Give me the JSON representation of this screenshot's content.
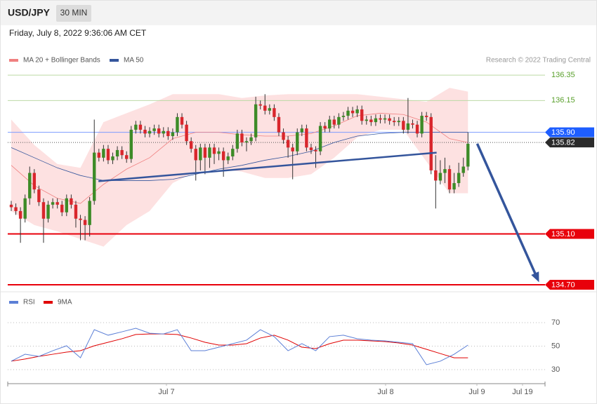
{
  "header": {
    "symbol": "USD/JPY",
    "interval": "30 MIN",
    "datetime": "Friday, July 8, 2022 9:36:06 AM CET",
    "credit": "Research © 2022 Trading Central"
  },
  "chart_data": [
    {
      "type": "candlestick",
      "legend": [
        {
          "name": "MA 20 + Bollinger Bands",
          "color": "#f08080"
        },
        {
          "name": "MA 50",
          "color": "#34559c"
        }
      ],
      "xlim": [
        -0.76,
        115.7
      ],
      "ylim": [
        134.65,
        136.61
      ],
      "up_color": "#3d8b27",
      "down_color": "#d9262c",
      "open": [
        135.33,
        135.31,
        135.28,
        135.22,
        135.38,
        135.58,
        135.45,
        135.35,
        135.22,
        135.33,
        135.35,
        135.33,
        135.27,
        135.38,
        135.33,
        135.22,
        135.21,
        135.17,
        135.36,
        135.74,
        135.7,
        135.77,
        135.68,
        135.71,
        135.76,
        135.72,
        135.69,
        135.92,
        135.96,
        135.92,
        135.89,
        135.91,
        135.93,
        135.89,
        135.91,
        135.87,
        135.9,
        136.02,
        135.96,
        135.83,
        135.77,
        135.68,
        135.78,
        135.7,
        135.78,
        135.73,
        135.75,
        135.68,
        135.71,
        135.77,
        135.89,
        135.82,
        135.83,
        135.86,
        136.12,
        136.11,
        136.07,
        136.09,
        136.02,
        135.9,
        135.84,
        135.78,
        135.75,
        135.9,
        135.93,
        135.78,
        135.76,
        135.75,
        135.95,
        135.93,
        136.0,
        135.96,
        136.02,
        136.03,
        136.07,
        136.05,
        136.08,
        135.99,
        136.0,
        135.98,
        136.01,
        136.0,
        136.01,
        135.99,
        135.98,
        135.99,
        135.92,
        135.97,
        135.96,
        135.89,
        136.03,
        136.02,
        135.6,
        135.52,
        135.58,
        135.61,
        135.45,
        135.5,
        135.58,
        135.63
      ],
      "high": [
        135.36,
        135.34,
        135.31,
        135.41,
        135.63,
        135.61,
        135.48,
        135.38,
        135.36,
        135.38,
        135.38,
        135.36,
        135.41,
        135.41,
        135.36,
        135.25,
        135.24,
        135.39,
        136.0,
        135.77,
        135.8,
        135.8,
        135.74,
        135.79,
        135.79,
        135.75,
        135.95,
        135.99,
        135.99,
        135.95,
        135.94,
        135.96,
        135.96,
        135.94,
        135.94,
        135.93,
        136.05,
        136.05,
        135.99,
        135.86,
        135.8,
        135.81,
        135.81,
        135.81,
        135.81,
        135.78,
        135.78,
        135.74,
        135.8,
        135.92,
        135.92,
        135.86,
        135.89,
        136.18,
        136.15,
        136.2,
        136.12,
        136.12,
        136.05,
        135.93,
        135.87,
        135.81,
        135.93,
        135.96,
        135.96,
        135.81,
        135.79,
        135.98,
        135.98,
        136.03,
        136.03,
        136.05,
        136.06,
        136.1,
        136.1,
        136.11,
        136.11,
        136.03,
        136.03,
        136.04,
        136.04,
        136.04,
        136.04,
        136.02,
        136.02,
        136.02,
        136.17,
        136.0,
        135.99,
        136.06,
        136.06,
        136.05,
        135.72,
        135.68,
        135.7,
        135.64,
        135.58,
        135.66,
        135.7,
        135.9
      ],
      "low": [
        135.28,
        135.25,
        135.03,
        135.19,
        135.33,
        135.42,
        135.32,
        135.03,
        135.19,
        135.3,
        135.3,
        135.24,
        135.24,
        135.3,
        135.15,
        135.05,
        135.05,
        135.08,
        135.33,
        135.67,
        135.67,
        135.65,
        135.65,
        135.68,
        135.69,
        135.66,
        135.66,
        135.89,
        135.89,
        135.86,
        135.86,
        135.88,
        135.86,
        135.86,
        135.84,
        135.84,
        135.87,
        135.93,
        135.8,
        135.74,
        135.52,
        135.6,
        135.57,
        135.62,
        135.65,
        135.68,
        135.55,
        135.65,
        135.68,
        135.74,
        135.79,
        135.75,
        135.8,
        135.83,
        136.08,
        136.04,
        136.04,
        135.99,
        135.87,
        135.81,
        135.7,
        135.53,
        135.72,
        135.87,
        135.75,
        135.73,
        135.62,
        135.72,
        135.9,
        135.9,
        135.93,
        135.93,
        135.99,
        136.0,
        136.02,
        136.02,
        135.96,
        135.96,
        135.95,
        135.95,
        135.97,
        135.97,
        135.96,
        135.95,
        135.95,
        135.89,
        135.89,
        135.93,
        135.86,
        135.86,
        135.99,
        135.57,
        135.3,
        135.49,
        135.5,
        135.42,
        135.42,
        135.47,
        135.55,
        135.6
      ],
      "close": [
        135.31,
        135.28,
        135.22,
        135.38,
        135.58,
        135.45,
        135.35,
        135.22,
        135.33,
        135.35,
        135.33,
        135.27,
        135.38,
        135.33,
        135.22,
        135.21,
        135.17,
        135.36,
        135.74,
        135.7,
        135.77,
        135.68,
        135.71,
        135.76,
        135.72,
        135.69,
        135.92,
        135.96,
        135.92,
        135.89,
        135.91,
        135.93,
        135.89,
        135.91,
        135.87,
        135.9,
        136.02,
        135.96,
        135.83,
        135.77,
        135.68,
        135.78,
        135.7,
        135.78,
        135.73,
        135.75,
        135.68,
        135.71,
        135.77,
        135.89,
        135.82,
        135.83,
        135.86,
        136.12,
        136.11,
        136.07,
        136.09,
        136.02,
        135.9,
        135.84,
        135.78,
        135.75,
        135.9,
        135.93,
        135.78,
        135.76,
        135.75,
        135.95,
        135.93,
        136.0,
        135.96,
        136.02,
        136.03,
        136.07,
        136.05,
        136.08,
        135.99,
        136.0,
        135.98,
        136.01,
        136.0,
        136.01,
        135.99,
        135.98,
        135.99,
        135.92,
        135.97,
        135.96,
        135.89,
        136.03,
        136.02,
        135.6,
        135.52,
        135.58,
        135.61,
        135.45,
        135.5,
        135.58,
        135.63,
        135.81
      ],
      "indicators": {
        "x": [
          0,
          5,
          10,
          15,
          20,
          25,
          30,
          35,
          40,
          45,
          50,
          55,
          60,
          65,
          70,
          75,
          80,
          85,
          90,
          95,
          99
        ],
        "band_color": "#fde1e1",
        "upper": [
          136.0,
          135.8,
          135.65,
          135.62,
          135.98,
          136.05,
          136.12,
          136.2,
          136.2,
          136.2,
          136.17,
          136.19,
          136.2,
          136.2,
          136.2,
          136.2,
          136.18,
          136.16,
          136.14,
          136.25,
          136.22
        ],
        "lower": [
          135.28,
          135.17,
          135.12,
          135.06,
          135.0,
          135.17,
          135.28,
          135.5,
          135.59,
          135.61,
          135.59,
          135.54,
          135.54,
          135.57,
          135.7,
          135.86,
          135.92,
          135.92,
          135.67,
          135.42,
          135.42
        ],
        "ma20": [
          135.64,
          135.48,
          135.38,
          135.34,
          135.49,
          135.61,
          135.7,
          135.85,
          135.9,
          135.9,
          135.88,
          135.87,
          135.87,
          135.89,
          135.95,
          136.03,
          136.05,
          136.04,
          135.98,
          135.85,
          135.82
        ],
        "ma50": [
          135.78,
          135.7,
          135.62,
          135.56,
          135.52,
          135.52,
          135.52,
          135.53,
          135.57,
          135.61,
          135.64,
          135.68,
          135.71,
          135.75,
          135.82,
          135.87,
          135.89,
          135.9,
          135.9,
          135.9,
          135.9
        ]
      },
      "trendline": {
        "x": [
          18.9,
          92.2
        ],
        "y": [
          135.515,
          135.74
        ],
        "color": "#34559c"
      },
      "arrow": {
        "x": [
          101,
          114.4
        ],
        "y": [
          135.81,
          134.72
        ],
        "color": "#34559c"
      },
      "levels": [
        {
          "value": 136.35,
          "color": "#5aa02c",
          "line_color": "#bcd9a4",
          "box": false
        },
        {
          "value": 136.15,
          "color": "#5aa02c",
          "line_color": "#bcd9a4",
          "box": false
        },
        {
          "value": 135.9,
          "label": "135.90",
          "color": "#1e5eff",
          "line_color": "#7d9bff",
          "box": true
        },
        {
          "value": 135.82,
          "color": "#2b2b2b",
          "line_color": "#555555",
          "box": true,
          "dotted": true
        },
        {
          "value": 135.1,
          "label": "135.10",
          "color": "#e8000b",
          "line_color": "#e8000b",
          "box": true
        },
        {
          "value": 134.7,
          "label": "134.70",
          "color": "#e8000b",
          "line_color": "#e8000b",
          "box": true
        }
      ]
    },
    {
      "type": "line",
      "x": [
        0,
        3,
        6,
        9,
        12,
        15,
        18,
        21,
        24,
        27,
        30,
        33,
        36,
        39,
        42,
        45,
        48,
        51,
        54,
        57,
        60,
        63,
        66,
        69,
        72,
        75,
        78,
        81,
        84,
        87,
        90,
        93,
        96,
        99
      ],
      "series": [
        {
          "name": "RSI",
          "color": "#5b7fd6",
          "values": [
            37.2,
            43.1,
            41.3,
            46.1,
            50.3,
            40.1,
            64.0,
            59.3,
            62.2,
            65.2,
            61.0,
            60.4,
            64.0,
            46.1,
            46.1,
            49.1,
            52.1,
            55.1,
            64.0,
            58.1,
            46.1,
            52.1,
            46.1,
            58.1,
            59.3,
            56.3,
            55.1,
            54.5,
            53.3,
            52.1,
            34.2,
            37.2,
            43.1,
            50.9
          ]
        },
        {
          "name": "9MA",
          "color": "#e00000",
          "values": [
            37.2,
            39.0,
            41.3,
            43.1,
            44.9,
            46.1,
            50.3,
            53.3,
            56.3,
            59.9,
            60.4,
            60.4,
            59.9,
            56.9,
            53.3,
            50.9,
            50.9,
            52.1,
            56.9,
            59.3,
            55.1,
            49.1,
            47.9,
            52.1,
            55.1,
            55.1,
            54.5,
            53.9,
            52.7,
            50.9,
            47.3,
            43.7,
            40.1,
            40.1
          ]
        }
      ],
      "xlim": [
        -0.76,
        115.7
      ],
      "ylim": [
        20,
        82
      ],
      "yticks": [
        30,
        50,
        70
      ],
      "grid": true,
      "xticks": [
        {
          "value": 33.64,
          "label": "Jul 7"
        },
        {
          "value": 81.14,
          "label": "Jul 8"
        },
        {
          "value": 100.93,
          "label": "Jul 9"
        },
        {
          "value": 110.82,
          "label": "Jul 19"
        }
      ]
    }
  ]
}
